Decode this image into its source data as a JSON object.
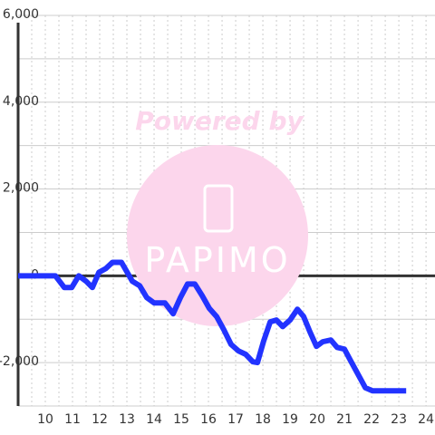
{
  "chart_data": {
    "type": "line",
    "watermark": [
      "Powered by",
      "PAPIMO"
    ],
    "x": [
      9.0,
      10.37,
      10.7,
      10.97,
      11.23,
      11.5,
      11.73,
      11.97,
      12.23,
      12.47,
      12.8,
      13.2,
      13.47,
      13.73,
      14.0,
      14.4,
      14.7,
      14.97,
      15.23,
      15.5,
      15.77,
      16.03,
      16.3,
      16.57,
      16.83,
      17.1,
      17.37,
      17.63,
      17.8,
      18.03,
      18.27,
      18.5,
      18.73,
      19.0,
      19.27,
      19.5,
      19.73,
      19.97,
      20.2,
      20.5,
      20.73,
      21.0,
      21.23,
      21.5,
      21.77,
      22.03,
      23.27
    ],
    "series": [
      {
        "color": "#2233ff",
        "values": [
          0,
          0,
          -270,
          -270,
          0,
          -125,
          -270,
          80,
          170,
          310,
          310,
          -125,
          -230,
          -500,
          -625,
          -625,
          -875,
          -500,
          -190,
          -190,
          -460,
          -750,
          -940,
          -1250,
          -1580,
          -1730,
          -1810,
          -1980,
          -2000,
          -1500,
          -1060,
          -1020,
          -1170,
          -1020,
          -770,
          -940,
          -1290,
          -1625,
          -1520,
          -1480,
          -1650,
          -1690,
          -1960,
          -2270,
          -2580,
          -2650,
          -2650
        ]
      }
    ],
    "xlim": [
      9.0,
      24.33
    ],
    "ylim": [
      -3000,
      6000
    ],
    "xticks": [
      10,
      11,
      12,
      13,
      14,
      15,
      16,
      17,
      18,
      19,
      20,
      21,
      22,
      23,
      24
    ],
    "x_minor_ticks": [
      9.5,
      10.5,
      11.5,
      12.5,
      13.5,
      14.5,
      15.5,
      16.5,
      17.5,
      18.5,
      19.5,
      20.5,
      21.5,
      22.5,
      23.5
    ],
    "yticks": [
      {
        "value": 6000,
        "label": "6,000"
      },
      {
        "value": 4000,
        "label": "4,000"
      },
      {
        "value": 2000,
        "label": "2,000"
      },
      0,
      {
        "value": -2000,
        "label": "-2,000"
      }
    ],
    "y_minor_ticks": [
      5000,
      3000,
      1000,
      -1000,
      -3000
    ],
    "grid": true
  }
}
